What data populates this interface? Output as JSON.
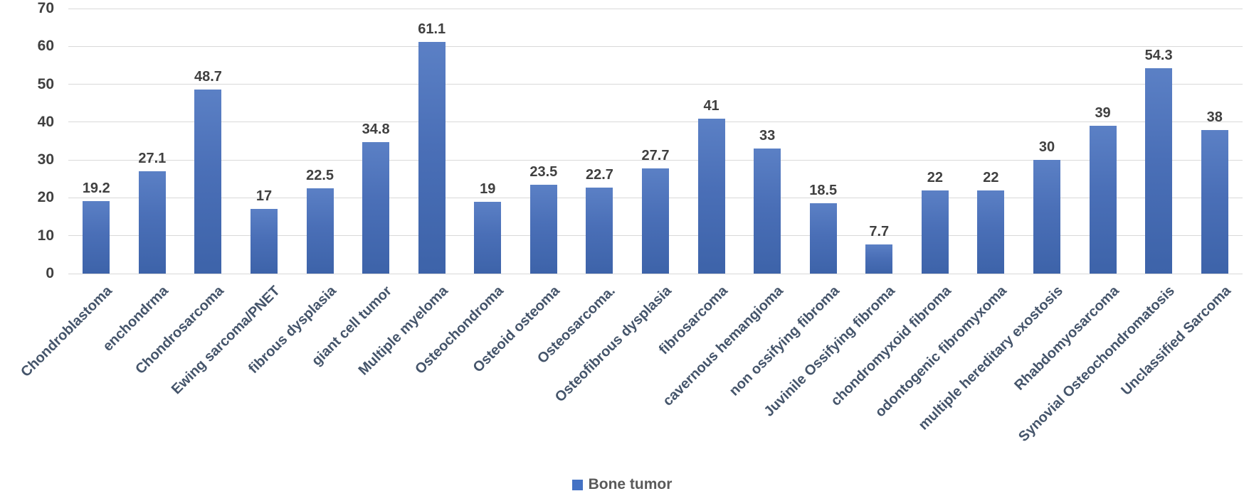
{
  "chart_data": {
    "type": "bar",
    "title": "",
    "xlabel": "",
    "ylabel": "",
    "categories": [
      "Chondroblastoma",
      "enchondrma",
      "Chondrosarcoma",
      "Ewing sarcoma/PNET",
      "fibrous dysplasia",
      "giant cell tumor",
      "Multiple myeloma",
      "Osteochondroma",
      "Osteoid osteoma",
      "Osteosarcoma.",
      "Osteofibrous dysplasia",
      "fibrosarcoma",
      "cavernous hemangioma",
      "non ossifying fibroma",
      "Juvinile Ossifying fibroma",
      "chondromyxoid fibroma",
      "odontogenic fibromyxoma",
      "multiple hereditary exostosis",
      "Rhabdomyosarcoma",
      "Synovial Osteochondromatosis",
      "Unclassified Sarcoma"
    ],
    "series": [
      {
        "name": "Bone tumor",
        "values": [
          19.2,
          27.1,
          48.7,
          17,
          22.5,
          34.8,
          61.1,
          19,
          23.5,
          22.7,
          27.7,
          41,
          33,
          18.5,
          7.7,
          22,
          22,
          30,
          39,
          54.3,
          38
        ]
      }
    ],
    "ylim": [
      0,
      70
    ],
    "yticks": [
      0,
      10,
      20,
      30,
      40,
      50,
      60,
      70
    ],
    "grid": true,
    "legend_position": "bottom",
    "colors": {
      "bar_gradient_top": "#5b80c5",
      "bar_gradient_bottom": "#3d63a9",
      "legend_swatch": "#4472c4",
      "gridline": "#d9d9d9",
      "value_label": "#404040",
      "tick_label": "#404040",
      "category_label": "#44546a",
      "background": "#ffffff"
    }
  }
}
